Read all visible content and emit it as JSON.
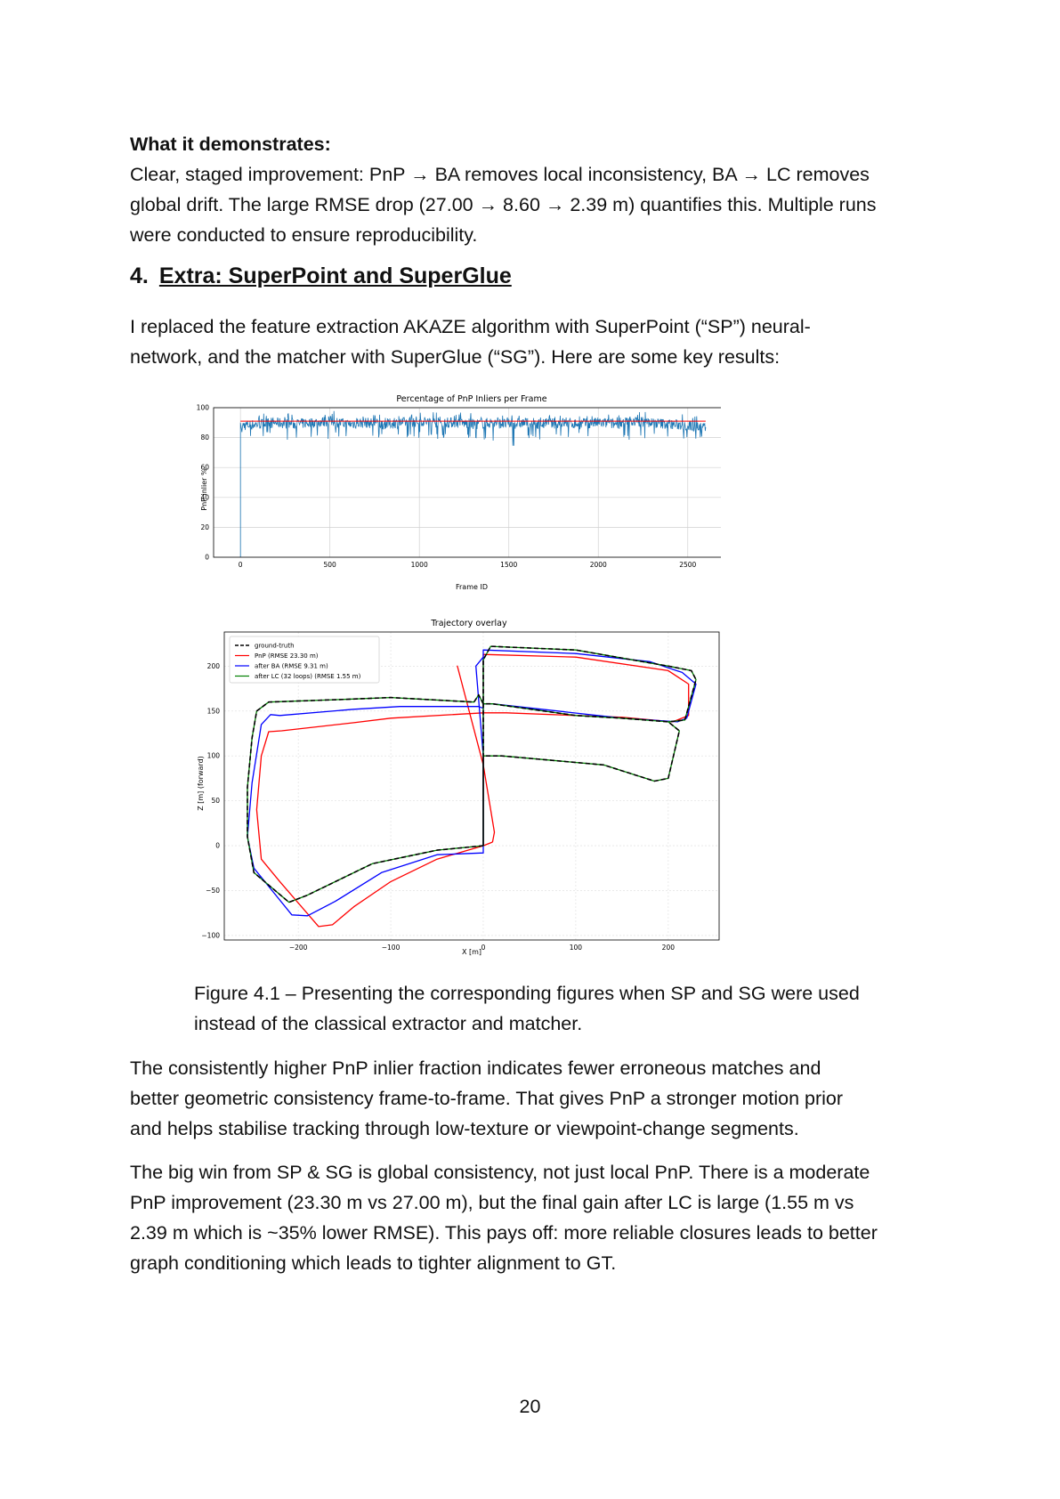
{
  "demo": {
    "label": "What it demonstrates:",
    "lines": [
      "Clear, staged improvement: PnP → BA removes local inconsistency, BA → LC removes",
      "global drift. The large RMSE drop (27.00 → 8.60 → 2.39 m) quantifies this. Multiple runs",
      "were conducted to ensure reproducibility."
    ]
  },
  "section": {
    "number": "4.",
    "title": "Extra: SuperPoint and SuperGlue"
  },
  "intro_lines": [
    "I replaced the feature extraction AKAZE algorithm with SuperPoint (“SP”) neural-",
    "network, and the matcher with SuperGlue (“SG”). Here are some key results:"
  ],
  "chart_data": [
    {
      "type": "line",
      "title": "Percentage of PnP Inliers per Frame",
      "xlabel": "Frame ID",
      "ylabel": "PnP inlier %",
      "xlim": [
        -150,
        2720
      ],
      "ylim": [
        0,
        100
      ],
      "xticks": [
        0,
        500,
        1000,
        1500,
        2000,
        2500
      ],
      "yticks": [
        0,
        20,
        40,
        60,
        80,
        100
      ],
      "grid": true,
      "series": [
        {
          "color": "#1f77b4",
          "x": [
            0,
            0,
            8,
            100,
            200,
            300,
            400,
            500,
            600,
            700,
            800,
            900,
            1000,
            1100,
            1200,
            1300,
            1400,
            1500,
            1600,
            1700,
            1800,
            1900,
            2000,
            2100,
            2200,
            2300,
            2400,
            2500,
            2600
          ],
          "y": [
            0,
            90,
            88,
            89,
            90,
            89,
            90,
            91,
            89,
            90,
            89,
            90,
            91,
            90,
            90,
            89,
            90,
            89,
            90,
            89,
            90,
            89,
            90,
            89,
            91,
            90,
            89,
            88,
            87
          ],
          "y_min_band": [
            0,
            90,
            80,
            80,
            78,
            80,
            79,
            80,
            78,
            79,
            80,
            79,
            80,
            79,
            79,
            78,
            76,
            74,
            78,
            79,
            80,
            79,
            80,
            78,
            79,
            80,
            78,
            79,
            82
          ],
          "y_max_band": [
            0,
            90,
            95,
            96,
            96,
            95,
            96,
            98,
            95,
            96,
            95,
            96,
            97,
            95,
            97,
            95,
            96,
            97,
            96,
            95,
            96,
            95,
            96,
            95,
            98,
            99,
            96,
            95,
            94
          ]
        },
        {
          "color": "#ff0000",
          "x": [
            0,
            2600
          ],
          "y": [
            91,
            91
          ]
        }
      ]
    },
    {
      "type": "line",
      "title": "Trajectory overlay",
      "xlabel": "X [m]",
      "ylabel": "Z [m]  (forward)",
      "xlim": [
        -280,
        255
      ],
      "ylim": [
        -105,
        238
      ],
      "xticks": [
        -200,
        -100,
        0,
        100,
        200
      ],
      "xtick_labels": [
        "−200",
        "−100",
        "0",
        "100",
        "200"
      ],
      "yticks": [
        -100,
        -50,
        0,
        50,
        100,
        150,
        200
      ],
      "ytick_labels": [
        "−100",
        "−50",
        "0",
        "50",
        "100",
        "150",
        "200"
      ],
      "grid": true,
      "legend_position": "top-left",
      "series": [
        {
          "name": "ground-truth",
          "color": "#000000",
          "dashed": true,
          "points": [
            [
              0,
              0
            ],
            [
              0,
              100
            ],
            [
              20,
              100
            ],
            [
              130,
              90
            ],
            [
              185,
              72
            ],
            [
              200,
              75
            ],
            [
              212,
              128
            ],
            [
              200,
              138
            ],
            [
              150,
              142
            ],
            [
              100,
              145
            ],
            [
              10,
              158
            ],
            [
              0,
              158
            ],
            [
              -5,
              168
            ],
            [
              -10,
              160
            ],
            [
              -100,
              165
            ],
            [
              -150,
              163
            ],
            [
              -232,
              160
            ],
            [
              -245,
              150
            ],
            [
              -250,
              120
            ],
            [
              -255,
              65
            ],
            [
              -255,
              10
            ],
            [
              -248,
              -30
            ],
            [
              -210,
              -63
            ],
            [
              -190,
              -55
            ],
            [
              -120,
              -20
            ],
            [
              -50,
              -5
            ],
            [
              0,
              0
            ],
            [
              0,
              100
            ],
            [
              0,
              207
            ],
            [
              8,
              222
            ],
            [
              100,
              218
            ],
            [
              200,
              200
            ],
            [
              225,
              195
            ],
            [
              230,
              185
            ],
            [
              218,
              140
            ],
            [
              200,
              138
            ]
          ]
        },
        {
          "name": "PnP (RMSE 23.30 m)",
          "color": "#ff0000",
          "points": [
            [
              10,
              4
            ],
            [
              12,
              15
            ],
            [
              0,
              90
            ],
            [
              -28,
              200
            ],
            [
              0,
              90
            ],
            [
              0,
              213
            ],
            [
              100,
              210
            ],
            [
              200,
              195
            ],
            [
              222,
              180
            ],
            [
              222,
              145
            ],
            [
              205,
              138
            ],
            [
              150,
              143
            ],
            [
              100,
              145
            ],
            [
              25,
              148
            ],
            [
              0,
              148
            ],
            [
              -100,
              142
            ],
            [
              -140,
              137
            ],
            [
              -218,
              128
            ],
            [
              -232,
              127
            ],
            [
              -240,
              100
            ],
            [
              -245,
              40
            ],
            [
              -240,
              -15
            ],
            [
              -220,
              -40
            ],
            [
              -178,
              -90
            ],
            [
              -163,
              -88
            ],
            [
              -140,
              -68
            ],
            [
              -100,
              -40
            ],
            [
              -50,
              -15
            ],
            [
              0,
              0
            ],
            [
              10,
              4
            ]
          ]
        },
        {
          "name": "after BA (RMSE 9.31 m)",
          "color": "#0000ff",
          "points": [
            [
              0,
              -8
            ],
            [
              -50,
              -10
            ],
            [
              -110,
              -30
            ],
            [
              -160,
              -62
            ],
            [
              -190,
              -78
            ],
            [
              -207,
              -77
            ],
            [
              -248,
              -25
            ],
            [
              -255,
              10
            ],
            [
              -250,
              70
            ],
            [
              -240,
              135
            ],
            [
              -230,
              146
            ],
            [
              -220,
              145
            ],
            [
              -140,
              152
            ],
            [
              -90,
              155
            ],
            [
              -5,
              155
            ],
            [
              0,
              153
            ],
            [
              0,
              210
            ],
            [
              -8,
              200
            ],
            [
              0,
              100
            ],
            [
              0,
              -8
            ],
            [
              0,
              218
            ],
            [
              100,
              214
            ],
            [
              180,
              205
            ],
            [
              215,
              193
            ],
            [
              230,
              180
            ],
            [
              220,
              142
            ],
            [
              210,
              138
            ],
            [
              150,
              142
            ],
            [
              10,
              158
            ],
            [
              0,
              158
            ]
          ]
        },
        {
          "name": "after LC (32 loops) (RMSE 1.55 m)",
          "color": "#008000",
          "points": [
            [
              0,
              0
            ],
            [
              0,
              100
            ],
            [
              20,
              100
            ],
            [
              130,
              90
            ],
            [
              185,
              72
            ],
            [
              200,
              75
            ],
            [
              212,
              128
            ],
            [
              200,
              138
            ],
            [
              150,
              142
            ],
            [
              100,
              145
            ],
            [
              10,
              158
            ],
            [
              0,
              158
            ],
            [
              -5,
              168
            ],
            [
              -10,
              160
            ],
            [
              -100,
              165
            ],
            [
              -150,
              163
            ],
            [
              -232,
              160
            ],
            [
              -245,
              150
            ],
            [
              -250,
              120
            ],
            [
              -255,
              65
            ],
            [
              -255,
              10
            ],
            [
              -248,
              -30
            ],
            [
              -210,
              -63
            ],
            [
              -190,
              -55
            ],
            [
              -120,
              -20
            ],
            [
              -50,
              -5
            ],
            [
              0,
              0
            ],
            [
              0,
              100
            ],
            [
              0,
              207
            ],
            [
              8,
              222
            ],
            [
              100,
              218
            ],
            [
              200,
              200
            ],
            [
              225,
              195
            ],
            [
              230,
              185
            ],
            [
              218,
              140
            ],
            [
              200,
              138
            ]
          ]
        }
      ]
    }
  ],
  "caption_lines": [
    "Figure 4.1 – Presenting the corresponding figures when SP and SG were used",
    "instead of the classical extractor and matcher."
  ],
  "para1_lines": [
    "The consistently higher PnP inlier fraction indicates fewer erroneous matches and",
    "better geometric consistency frame-to-frame. That gives PnP a stronger motion prior",
    "and helps stabilise tracking through low-texture or viewpoint-change segments."
  ],
  "para2_lines": [
    "The big win from SP & SG is global consistency, not just local PnP. There is a moderate",
    "PnP improvement (23.30 m vs 27.00 m), but the final gain after LC is large (1.55 m vs",
    "2.39 m which is ~35% lower RMSE). This pays off: more reliable closures leads to better",
    "graph conditioning which leads to tighter alignment to GT."
  ],
  "page_number": "20"
}
